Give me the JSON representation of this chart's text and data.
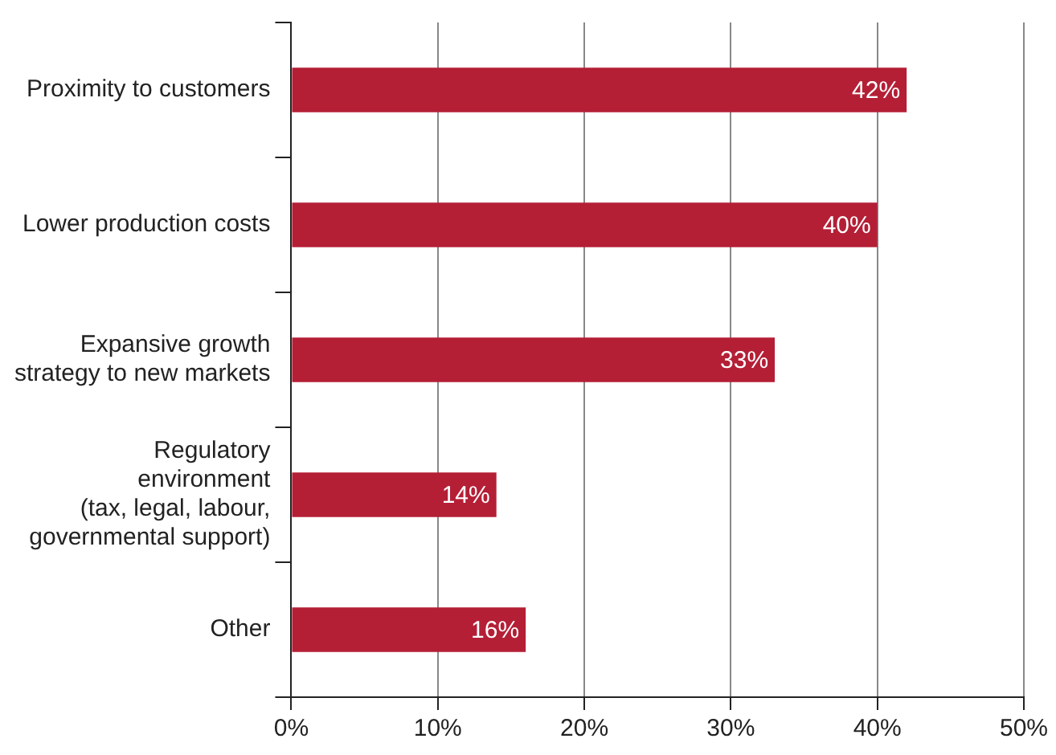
{
  "chart_data": {
    "type": "bar",
    "orientation": "horizontal",
    "categories": [
      "Proximity to customers",
      "Lower production costs",
      "Expansive growth\nstrategy to new markets",
      "Regulatory\nenvironment\n(tax, legal, labour,\ngovernmental support)",
      "Other"
    ],
    "values": [
      42,
      40,
      33,
      14,
      16
    ],
    "value_labels": [
      "42%",
      "40%",
      "33%",
      "14%",
      "16%"
    ],
    "color": "#b41f36",
    "xlim": [
      0,
      50
    ],
    "xticks": [
      {
        "value": 0,
        "label": "0%"
      },
      {
        "value": 10,
        "label": "10%"
      },
      {
        "value": 20,
        "label": "20%"
      },
      {
        "value": 30,
        "label": "30%"
      },
      {
        "value": 40,
        "label": "40%"
      },
      {
        "value": 50,
        "label": "50%"
      }
    ],
    "grid": "x",
    "legend": false
  }
}
